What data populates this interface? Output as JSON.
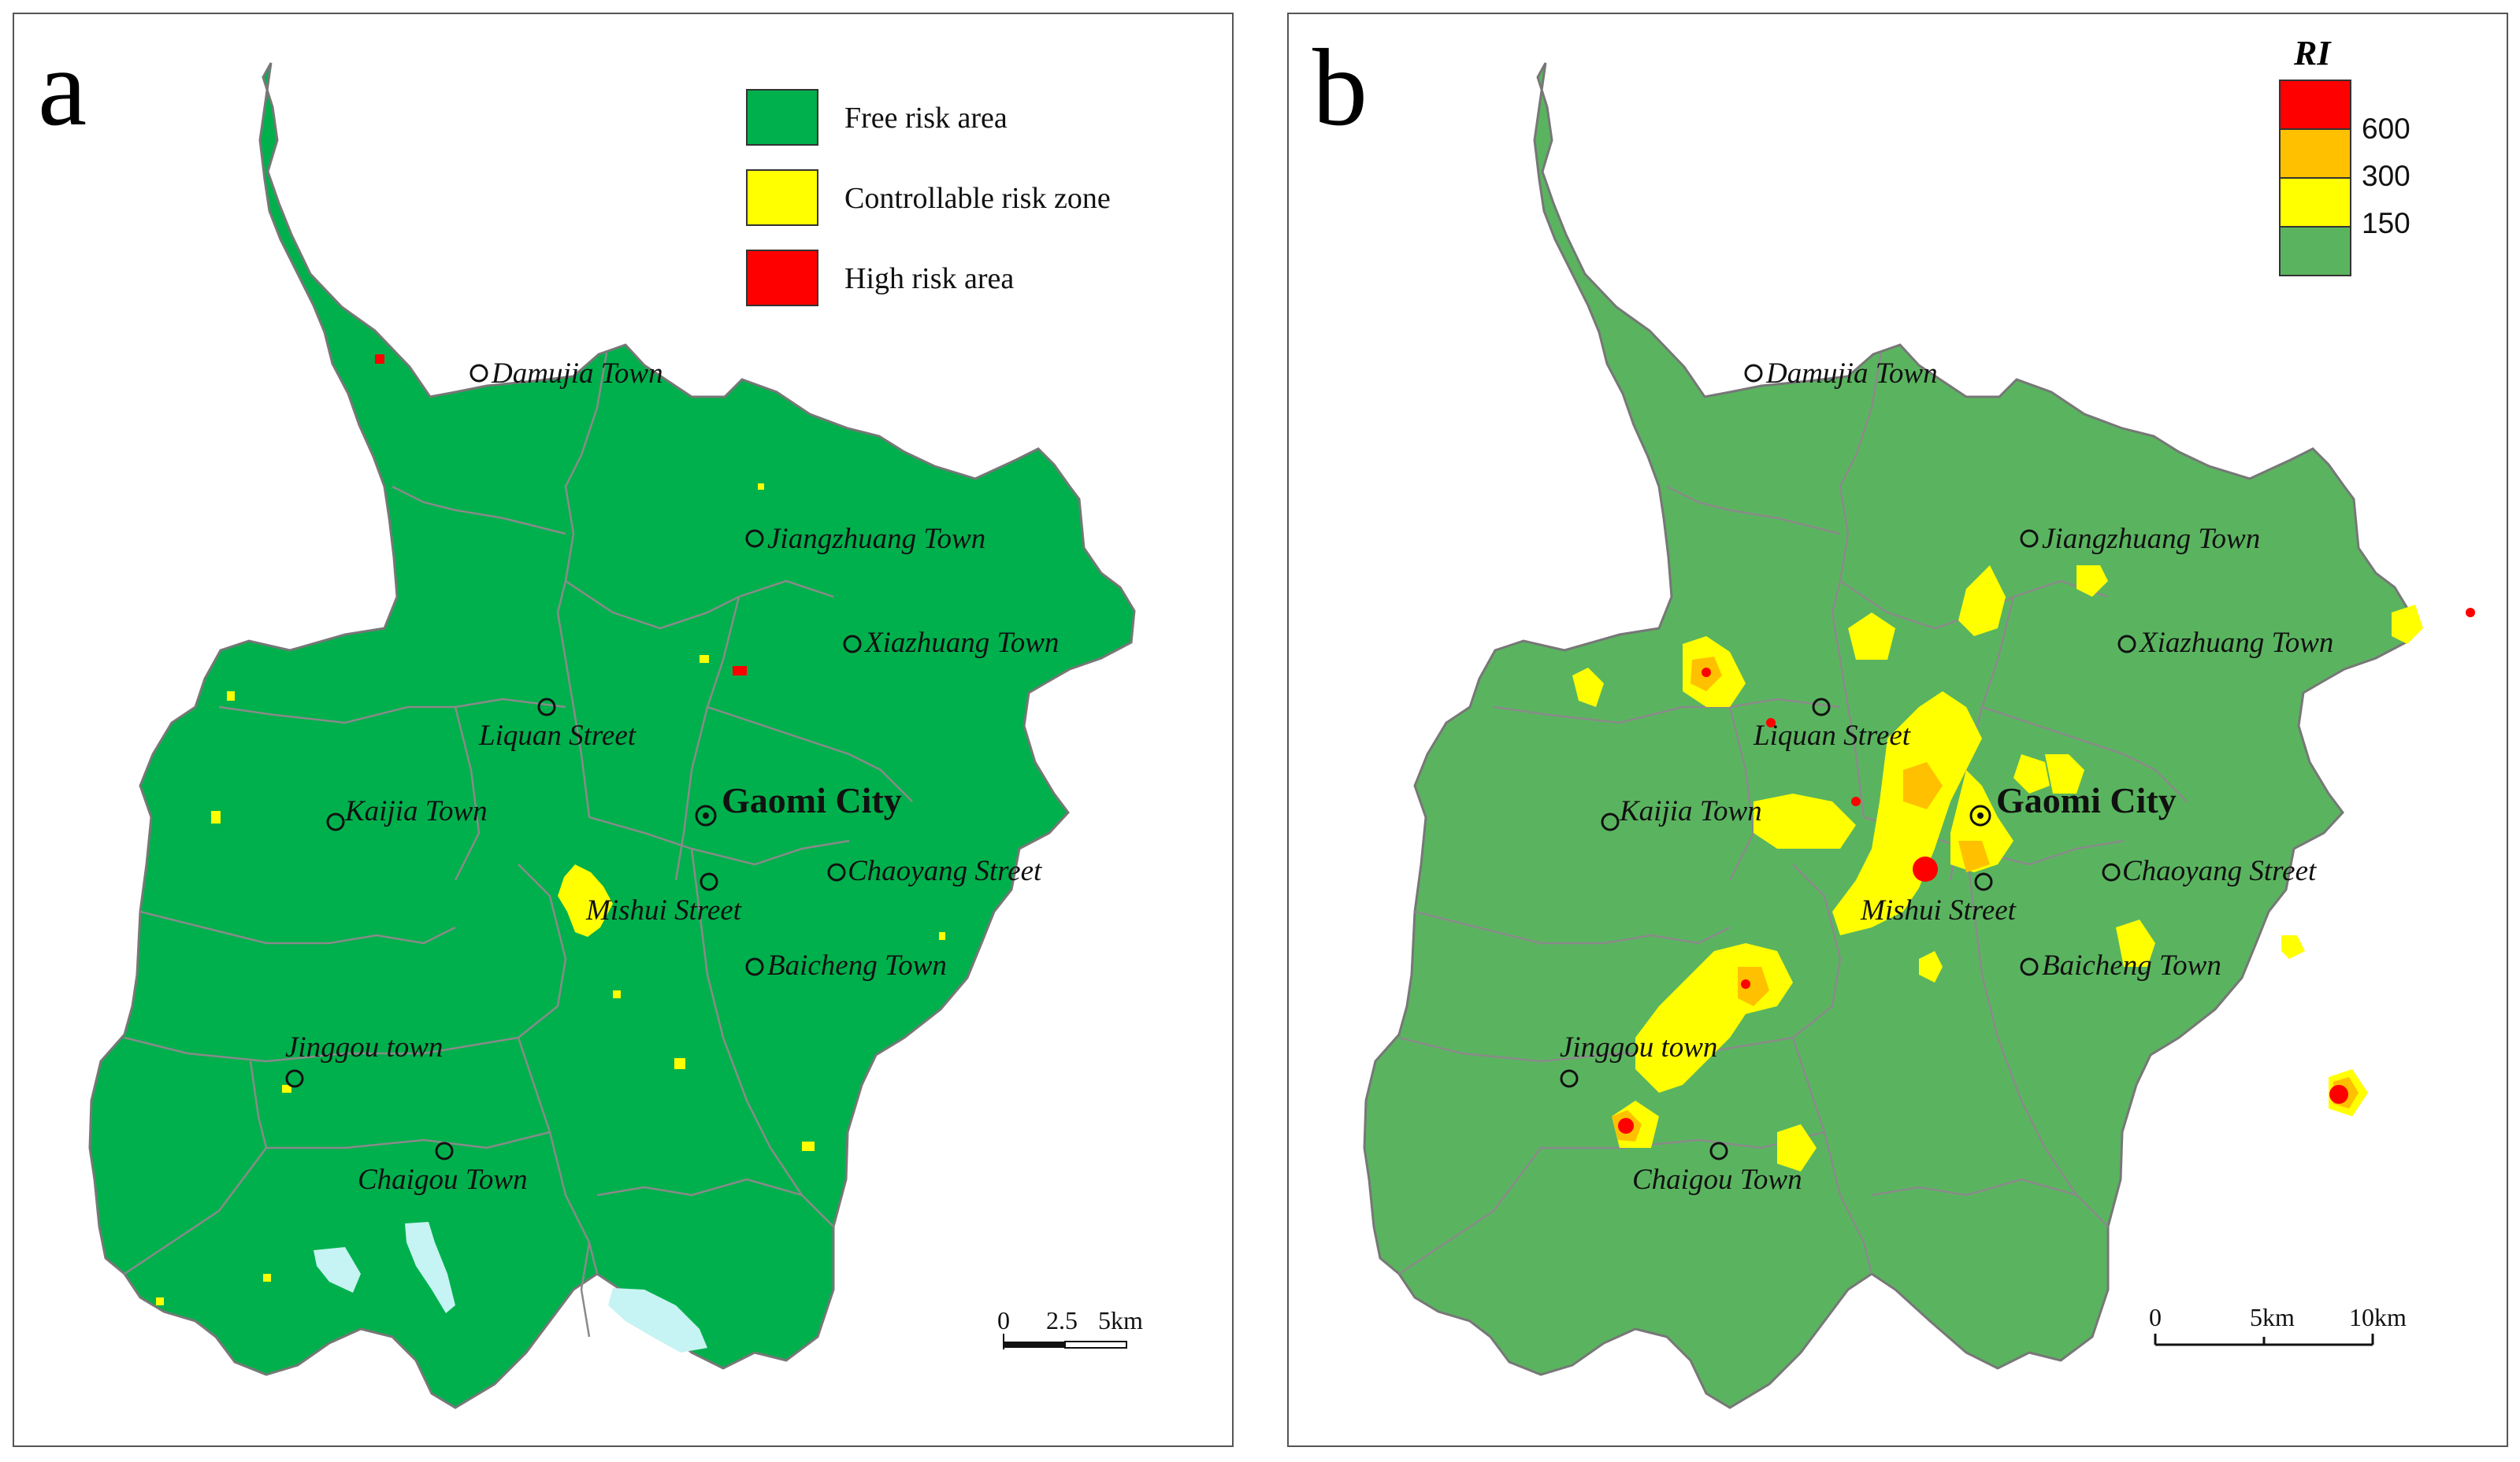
{
  "panel_a": {
    "label": "a",
    "legend": [
      {
        "label": "Free risk area",
        "color": "#00b04c"
      },
      {
        "label": "Controllable risk zone",
        "color": "#ffff00"
      },
      {
        "label": "High risk area",
        "color": "#ff0000"
      }
    ],
    "scale": {
      "ticks": [
        "0",
        "2.5",
        "5km"
      ]
    }
  },
  "panel_b": {
    "label": "b",
    "legend_title": "RI",
    "legend": [
      {
        "label": "600",
        "color": "#ff0000"
      },
      {
        "label": "300",
        "color": "#ffc000"
      },
      {
        "label": "150",
        "color": "#ffff00"
      },
      {
        "label": "",
        "color": "#5ab45f"
      }
    ],
    "scale": {
      "ticks": [
        "0",
        "5km",
        "10km"
      ]
    }
  },
  "places": [
    {
      "name": "Damujia Town"
    },
    {
      "name": "Jiangzhuang Town"
    },
    {
      "name": "Xiazhuang Town"
    },
    {
      "name": "Liquan Street"
    },
    {
      "name": "Kaijia Town"
    },
    {
      "name": "Gaomi City"
    },
    {
      "name": "Chaoyang Street"
    },
    {
      "name": "Mishui Street"
    },
    {
      "name": "Baicheng Town"
    },
    {
      "name": "Jinggou town"
    },
    {
      "name": "Chaigou Town"
    }
  ],
  "colors": {
    "free_risk_green": "#00b04c",
    "ri_base_green": "#5ab45f",
    "boundary_gray": "#888888",
    "reservoir_blue": "#c6f3f3"
  }
}
